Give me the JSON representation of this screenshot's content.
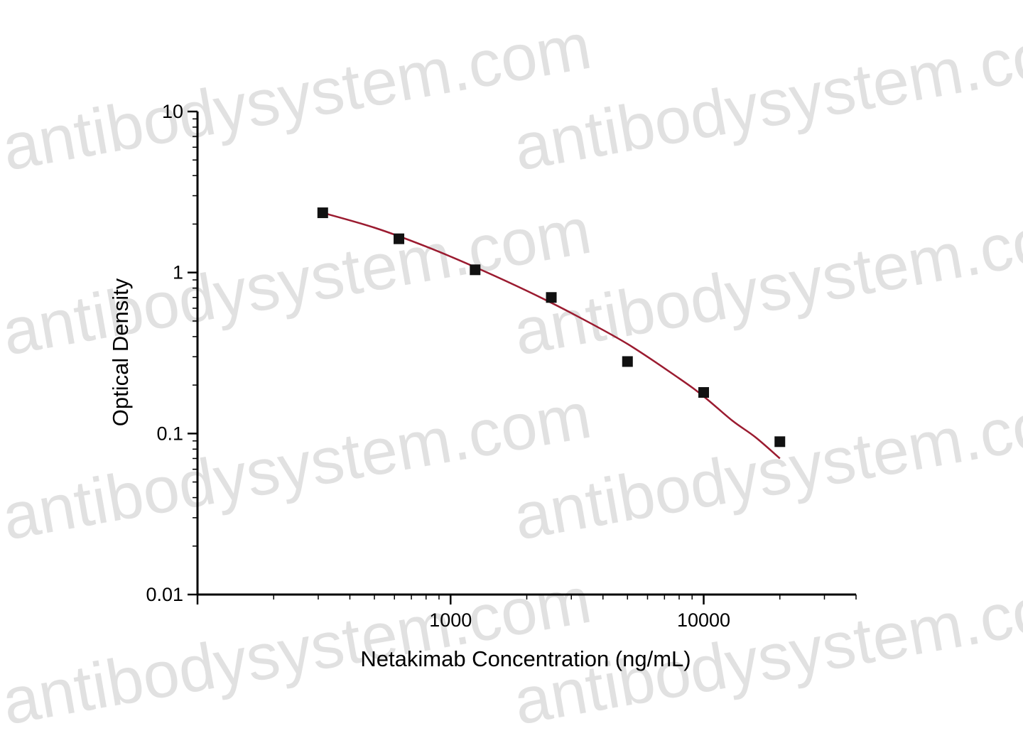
{
  "chart_data": {
    "type": "scatter",
    "x_scale": "log",
    "y_scale": "log",
    "xlabel": "Netakimab Concentration (ng/mL)",
    "ylabel": "Optical Density",
    "xlim": [
      100,
      40000
    ],
    "ylim": [
      0.01,
      10
    ],
    "x_ticks": [
      {
        "value": 1000,
        "label": "1000"
      },
      {
        "value": 10000,
        "label": "10000"
      }
    ],
    "y_ticks": [
      {
        "value": 10,
        "label": "10"
      },
      {
        "value": 1,
        "label": "1"
      },
      {
        "value": 0.1,
        "label": "0.1"
      },
      {
        "value": 0.01,
        "label": "0.01"
      }
    ],
    "grid": false,
    "series": [
      {
        "type": "scatter",
        "marker": "square",
        "color": "#111111",
        "x": [
          312.5,
          625,
          1250,
          2500,
          5000,
          10000,
          20000
        ],
        "y": [
          2.35,
          1.62,
          1.04,
          0.7,
          0.28,
          0.18,
          0.089
        ]
      },
      {
        "type": "line",
        "color": "#9b1b30",
        "x": [
          312.5,
          500,
          800,
          1250,
          2000,
          3000,
          5000,
          8000,
          10000,
          13000,
          16000,
          20000
        ],
        "y": [
          2.35,
          1.9,
          1.45,
          1.08,
          0.77,
          0.56,
          0.36,
          0.22,
          0.17,
          0.12,
          0.095,
          0.07
        ]
      }
    ]
  },
  "watermark": {
    "text": "antibodysystem.com",
    "color": "#c9c9c9"
  }
}
